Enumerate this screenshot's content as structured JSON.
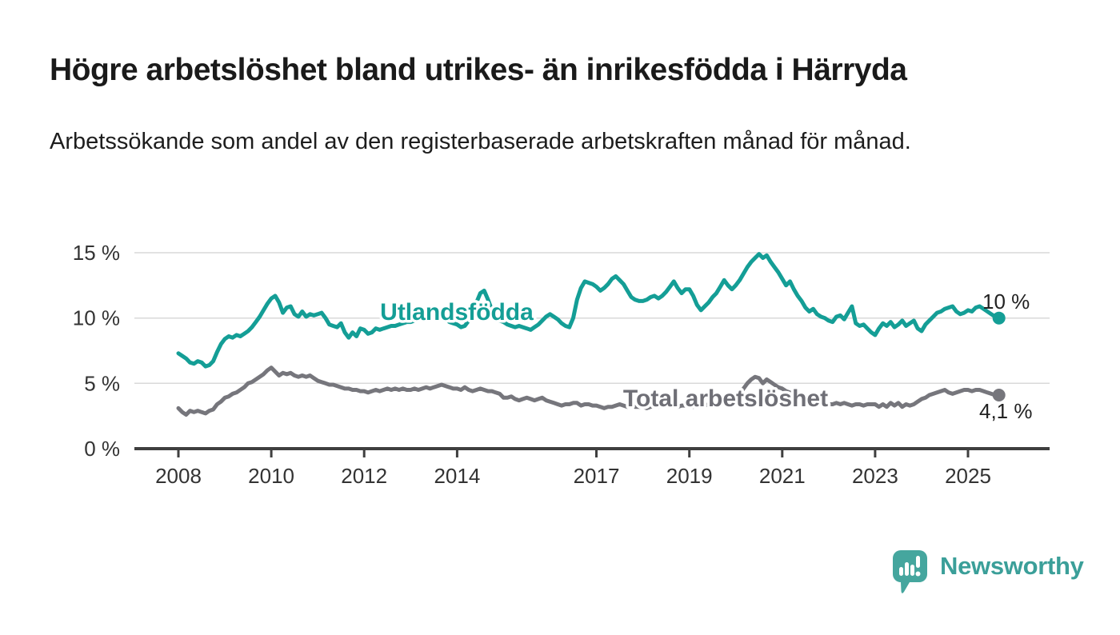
{
  "title": "Högre arbetslöshet bland utrikes- än inrikesfödda i Härryda",
  "subtitle": "Arbetssökande som andel av den registerbaserade arbetskraften månad för månad.",
  "branding": {
    "name": "Newsworthy",
    "icon": "bar-chart-speech-bubble-icon",
    "color": "#45a69e"
  },
  "colors": {
    "accent_teal": "#149e96",
    "series_gray": "#76767c",
    "gridline": "#d9d9d9",
    "axis": "#3f3f3f",
    "text": "#1a1a1a"
  },
  "chart_data": {
    "type": "line",
    "title": "Högre arbetslöshet bland utrikes- än inrikesfödda i Härryda",
    "subtitle": "Arbetssökande som andel av den registerbaserade arbetskraften månad för månad.",
    "xlabel": "",
    "ylabel": "",
    "frequency": "monthly",
    "x_start": "2008-01",
    "x_end": "2025-09",
    "xticks": [
      2008,
      2010,
      2012,
      2014,
      2017,
      2019,
      2021,
      2023,
      2025
    ],
    "yticks": [
      {
        "label": "0 %",
        "value": 0
      },
      {
        "label": "5 %",
        "value": 5
      },
      {
        "label": "10 %",
        "value": 10
      },
      {
        "label": "15 %",
        "value": 15
      }
    ],
    "ylim": [
      0,
      15.5
    ],
    "grid": true,
    "legend_position": "inline-labels",
    "series": [
      {
        "name": "Utlandsfödda",
        "color": "#149e96",
        "end_label": "10 %",
        "end_value": 10.0,
        "values": [
          7.3,
          7.1,
          6.9,
          6.6,
          6.5,
          6.7,
          6.6,
          6.3,
          6.4,
          6.7,
          7.4,
          8.0,
          8.4,
          8.6,
          8.5,
          8.7,
          8.6,
          8.8,
          9.0,
          9.3,
          9.7,
          10.1,
          10.6,
          11.1,
          11.5,
          11.7,
          11.2,
          10.4,
          10.8,
          10.9,
          10.3,
          10.1,
          10.5,
          10.1,
          10.3,
          10.2,
          10.3,
          10.4,
          10.0,
          9.5,
          9.4,
          9.3,
          9.6,
          8.9,
          8.5,
          8.9,
          8.6,
          9.2,
          9.1,
          8.8,
          8.9,
          9.2,
          9.1,
          9.2,
          9.3,
          9.4,
          9.4,
          9.5,
          9.6,
          9.7,
          9.7,
          9.8,
          9.9,
          10.0,
          10.1,
          10.0,
          9.9,
          10.0,
          10.1,
          9.9,
          9.7,
          9.6,
          9.5,
          9.3,
          9.4,
          9.8,
          10.4,
          11.2,
          11.9,
          12.1,
          11.4,
          10.6,
          10.1,
          9.8,
          9.7,
          9.5,
          9.4,
          9.3,
          9.4,
          9.3,
          9.2,
          9.1,
          9.3,
          9.5,
          9.8,
          10.1,
          10.3,
          10.1,
          9.9,
          9.6,
          9.4,
          9.3,
          10.0,
          11.4,
          12.3,
          12.8,
          12.7,
          12.6,
          12.4,
          12.1,
          12.3,
          12.6,
          13.0,
          13.2,
          12.9,
          12.6,
          12.1,
          11.6,
          11.4,
          11.3,
          11.3,
          11.4,
          11.6,
          11.7,
          11.5,
          11.7,
          12.0,
          12.4,
          12.8,
          12.3,
          11.9,
          12.2,
          12.2,
          11.7,
          11.0,
          10.6,
          10.9,
          11.2,
          11.6,
          11.9,
          12.4,
          12.9,
          12.5,
          12.2,
          12.5,
          12.9,
          13.4,
          13.9,
          14.3,
          14.6,
          14.9,
          14.6,
          14.8,
          14.3,
          13.9,
          13.5,
          13.0,
          12.5,
          12.8,
          12.2,
          11.7,
          11.3,
          10.8,
          10.5,
          10.7,
          10.3,
          10.1,
          10.0,
          9.8,
          9.7,
          10.1,
          10.2,
          9.9,
          10.4,
          10.9,
          9.6,
          9.4,
          9.5,
          9.2,
          8.9,
          8.7,
          9.2,
          9.6,
          9.4,
          9.7,
          9.3,
          9.5,
          9.8,
          9.4,
          9.6,
          9.8,
          9.2,
          9.0,
          9.5,
          9.8,
          10.1,
          10.4,
          10.5,
          10.7,
          10.8,
          10.9,
          10.5,
          10.3,
          10.4,
          10.6,
          10.5,
          10.8,
          10.9,
          10.7,
          10.5,
          10.3,
          10.1,
          10.0
        ]
      },
      {
        "name": "Total arbetslöshet",
        "color": "#76767c",
        "end_label": "4,1 %",
        "end_value": 4.1,
        "values": [
          3.1,
          2.8,
          2.6,
          2.9,
          2.8,
          2.9,
          2.8,
          2.7,
          2.9,
          3.0,
          3.4,
          3.6,
          3.9,
          4.0,
          4.2,
          4.3,
          4.5,
          4.7,
          5.0,
          5.1,
          5.3,
          5.5,
          5.7,
          6.0,
          6.2,
          5.9,
          5.6,
          5.8,
          5.7,
          5.8,
          5.6,
          5.5,
          5.6,
          5.5,
          5.6,
          5.4,
          5.2,
          5.1,
          5.0,
          4.9,
          4.9,
          4.8,
          4.7,
          4.6,
          4.6,
          4.5,
          4.5,
          4.4,
          4.4,
          4.3,
          4.4,
          4.5,
          4.4,
          4.5,
          4.6,
          4.5,
          4.6,
          4.5,
          4.6,
          4.5,
          4.5,
          4.6,
          4.5,
          4.6,
          4.7,
          4.6,
          4.7,
          4.8,
          4.9,
          4.8,
          4.7,
          4.6,
          4.6,
          4.5,
          4.7,
          4.5,
          4.4,
          4.5,
          4.6,
          4.5,
          4.4,
          4.4,
          4.3,
          4.2,
          3.9,
          3.9,
          4.0,
          3.8,
          3.7,
          3.8,
          3.9,
          3.8,
          3.7,
          3.8,
          3.9,
          3.7,
          3.6,
          3.5,
          3.4,
          3.3,
          3.4,
          3.4,
          3.5,
          3.5,
          3.3,
          3.4,
          3.4,
          3.3,
          3.3,
          3.2,
          3.1,
          3.2,
          3.2,
          3.3,
          3.4,
          3.3,
          3.2,
          3.3,
          3.2,
          3.2,
          3.2,
          3.1,
          3.2,
          3.3,
          3.2,
          3.3,
          3.3,
          3.2,
          3.3,
          3.2,
          3.3,
          3.3,
          3.3,
          3.2,
          3.3,
          3.3,
          3.4,
          3.3,
          3.4,
          3.5,
          3.4,
          3.5,
          3.6,
          3.7,
          3.9,
          4.2,
          4.6,
          5.0,
          5.3,
          5.5,
          5.4,
          5.0,
          5.3,
          5.1,
          4.9,
          4.7,
          4.6,
          4.4,
          4.3,
          4.2,
          4.1,
          4.0,
          3.9,
          3.8,
          3.7,
          3.6,
          3.5,
          3.5,
          3.4,
          3.4,
          3.5,
          3.4,
          3.5,
          3.4,
          3.3,
          3.4,
          3.4,
          3.3,
          3.4,
          3.4,
          3.4,
          3.2,
          3.4,
          3.2,
          3.5,
          3.3,
          3.5,
          3.2,
          3.4,
          3.3,
          3.4,
          3.6,
          3.8,
          3.9,
          4.1,
          4.2,
          4.3,
          4.4,
          4.5,
          4.3,
          4.2,
          4.3,
          4.4,
          4.5,
          4.5,
          4.4,
          4.5,
          4.5,
          4.4,
          4.3,
          4.2,
          4.1,
          4.1
        ]
      }
    ]
  }
}
